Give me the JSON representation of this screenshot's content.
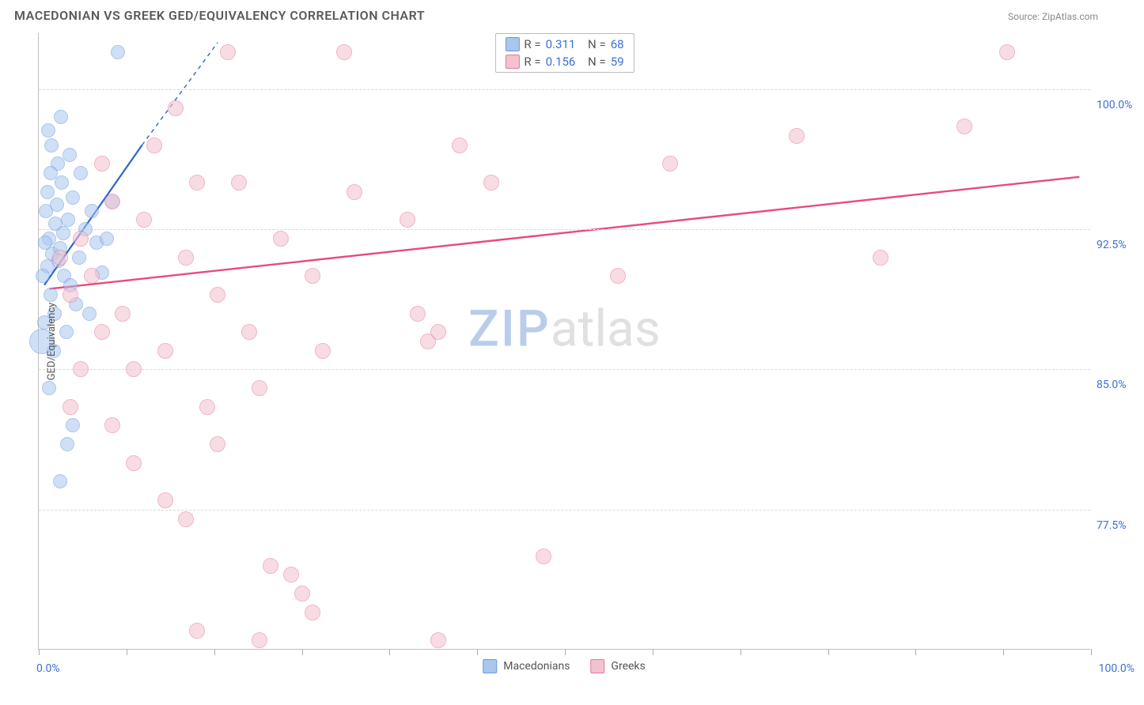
{
  "title": "MACEDONIAN VS GREEK GED/EQUIVALENCY CORRELATION CHART",
  "source": "Source: ZipAtlas.com",
  "watermark": {
    "part1": "ZIP",
    "part2": "atlas"
  },
  "chart": {
    "type": "scatter",
    "background_color": "#ffffff",
    "grid_color": "#dadada",
    "axis_color": "#c0c0c0",
    "tick_label_color": "#3b6fd6",
    "tick_label_fontsize": 14,
    "y_axis_title": "GED/Equivalency",
    "y_axis_title_fontsize": 13,
    "y_axis_title_color": "#555555",
    "x_axis": {
      "min": 0,
      "max": 100,
      "tick_positions": [
        0,
        8.33,
        16.66,
        25,
        33.33,
        41.66,
        50,
        58.33,
        66.66,
        75,
        83.33,
        91.66,
        100
      ],
      "label_min": "0.0%",
      "label_max": "100.0%"
    },
    "y_axis": {
      "min": 70,
      "max": 103,
      "gridlines": [
        77.5,
        85.0,
        92.5,
        100.0
      ],
      "gridline_labels": [
        "77.5%",
        "85.0%",
        "92.5%",
        "100.0%"
      ]
    },
    "series": [
      {
        "name": "Macedonians",
        "fill_color": "#a9c6ef",
        "stroke_color": "#6a9ad9",
        "fill_opacity": 0.55,
        "marker_radius": 9,
        "marker_radius_large": 16,
        "trend_line": {
          "color": "#2e64c9",
          "width": 2.2,
          "x1": 0.5,
          "y1": 89.5,
          "x2": 9.8,
          "y2": 97.0,
          "dashed_x2": 17,
          "dashed_y2": 102.5
        },
        "R_label": "R =",
        "R_value": "0.311",
        "N_label": "N =",
        "N_value": "68",
        "points": [
          {
            "x": 0.8,
            "y": 90.5
          },
          {
            "x": 1.3,
            "y": 91.2
          },
          {
            "x": 1.0,
            "y": 92.0
          },
          {
            "x": 1.6,
            "y": 92.8
          },
          {
            "x": 0.7,
            "y": 93.5
          },
          {
            "x": 2.0,
            "y": 91.5
          },
          {
            "x": 2.4,
            "y": 90.0
          },
          {
            "x": 1.1,
            "y": 89.0
          },
          {
            "x": 1.5,
            "y": 88.0
          },
          {
            "x": 0.5,
            "y": 87.5
          },
          {
            "x": 2.8,
            "y": 93.0
          },
          {
            "x": 3.2,
            "y": 94.2
          },
          {
            "x": 2.2,
            "y": 95.0
          },
          {
            "x": 1.8,
            "y": 96.0
          },
          {
            "x": 1.2,
            "y": 97.0
          },
          {
            "x": 0.9,
            "y": 97.8
          },
          {
            "x": 1.4,
            "y": 86.0
          },
          {
            "x": 2.6,
            "y": 87.0
          },
          {
            "x": 3.8,
            "y": 91.0
          },
          {
            "x": 4.4,
            "y": 92.5
          },
          {
            "x": 3.0,
            "y": 89.5
          },
          {
            "x": 3.5,
            "y": 88.5
          },
          {
            "x": 5.0,
            "y": 93.5
          },
          {
            "x": 5.5,
            "y": 91.8
          },
          {
            "x": 4.0,
            "y": 95.5
          },
          {
            "x": 2.1,
            "y": 98.5
          },
          {
            "x": 7.5,
            "y": 102.0
          },
          {
            "x": 1.0,
            "y": 84.0
          },
          {
            "x": 3.2,
            "y": 82.0
          },
          {
            "x": 2.7,
            "y": 81.0
          },
          {
            "x": 2.0,
            "y": 79.0
          },
          {
            "x": 6.0,
            "y": 90.2
          },
          {
            "x": 6.5,
            "y": 92.0
          },
          {
            "x": 7.0,
            "y": 94.0
          },
          {
            "x": 4.8,
            "y": 88.0
          },
          {
            "x": 0.6,
            "y": 91.8
          },
          {
            "x": 0.4,
            "y": 90.0
          },
          {
            "x": 1.7,
            "y": 93.8
          },
          {
            "x": 2.9,
            "y": 96.5
          },
          {
            "x": 0.3,
            "y": 86.5,
            "r": 16
          },
          {
            "x": 1.9,
            "y": 90.8
          },
          {
            "x": 2.3,
            "y": 92.3
          },
          {
            "x": 0.8,
            "y": 94.5
          },
          {
            "x": 1.1,
            "y": 95.5
          }
        ]
      },
      {
        "name": "Greeks",
        "fill_color": "#f4c1cf",
        "stroke_color": "#e47a9a",
        "fill_opacity": 0.55,
        "marker_radius": 10,
        "trend_line": {
          "color": "#e94b7a",
          "width": 2.4,
          "x1": 1,
          "y1": 89.3,
          "x2": 99,
          "y2": 95.3
        },
        "R_label": "R =",
        "R_value": "0.156",
        "N_label": "N =",
        "N_value": "59",
        "points": [
          {
            "x": 2,
            "y": 91
          },
          {
            "x": 3,
            "y": 89
          },
          {
            "x": 4,
            "y": 92
          },
          {
            "x": 6,
            "y": 87
          },
          {
            "x": 7,
            "y": 94
          },
          {
            "x": 5,
            "y": 90
          },
          {
            "x": 8,
            "y": 88
          },
          {
            "x": 9,
            "y": 85
          },
          {
            "x": 10,
            "y": 93
          },
          {
            "x": 11,
            "y": 97
          },
          {
            "x": 12,
            "y": 86
          },
          {
            "x": 14,
            "y": 91
          },
          {
            "x": 15,
            "y": 95
          },
          {
            "x": 16,
            "y": 83
          },
          {
            "x": 17,
            "y": 89
          },
          {
            "x": 18,
            "y": 102
          },
          {
            "x": 13,
            "y": 99
          },
          {
            "x": 7,
            "y": 82
          },
          {
            "x": 9,
            "y": 80
          },
          {
            "x": 12,
            "y": 78
          },
          {
            "x": 14,
            "y": 77
          },
          {
            "x": 20,
            "y": 87
          },
          {
            "x": 21,
            "y": 84
          },
          {
            "x": 23,
            "y": 92
          },
          {
            "x": 25,
            "y": 73
          },
          {
            "x": 26,
            "y": 90
          },
          {
            "x": 27,
            "y": 86
          },
          {
            "x": 29,
            "y": 102
          },
          {
            "x": 30,
            "y": 94.5
          },
          {
            "x": 24,
            "y": 74
          },
          {
            "x": 22,
            "y": 74.5
          },
          {
            "x": 26,
            "y": 72
          },
          {
            "x": 35,
            "y": 93
          },
          {
            "x": 36,
            "y": 88
          },
          {
            "x": 37,
            "y": 86.5
          },
          {
            "x": 40,
            "y": 97
          },
          {
            "x": 43,
            "y": 95
          },
          {
            "x": 45,
            "y": 102
          },
          {
            "x": 38,
            "y": 87
          },
          {
            "x": 48,
            "y": 75
          },
          {
            "x": 55,
            "y": 90
          },
          {
            "x": 38,
            "y": 70.5
          },
          {
            "x": 60,
            "y": 96
          },
          {
            "x": 72,
            "y": 97.5
          },
          {
            "x": 80,
            "y": 91
          },
          {
            "x": 88,
            "y": 98
          },
          {
            "x": 92,
            "y": 102
          },
          {
            "x": 15,
            "y": 71
          },
          {
            "x": 17,
            "y": 81
          },
          {
            "x": 6,
            "y": 96
          },
          {
            "x": 4,
            "y": 85
          },
          {
            "x": 3,
            "y": 83
          },
          {
            "x": 19,
            "y": 95
          },
          {
            "x": 21,
            "y": 70.5
          }
        ]
      }
    ]
  }
}
